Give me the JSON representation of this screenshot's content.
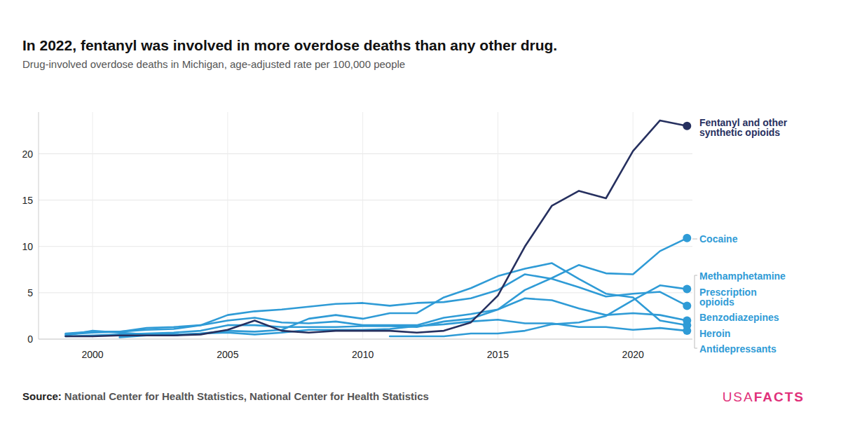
{
  "chart_data": {
    "type": "line",
    "title": "In 2022, fentanyl was involved in more overdose deaths than any other drug.",
    "subtitle": "Drug-involved overdose deaths in Michigan, age-adjusted rate per 100,000 people",
    "source_label": "Source:",
    "source": "National Center for Health Statistics, National Center for Health Statistics",
    "logo": [
      "USA",
      "FACTS"
    ],
    "x": [
      1999,
      2000,
      2001,
      2002,
      2003,
      2004,
      2005,
      2006,
      2007,
      2008,
      2009,
      2010,
      2011,
      2012,
      2013,
      2014,
      2015,
      2016,
      2017,
      2018,
      2019,
      2020,
      2021,
      2022
    ],
    "xlim": [
      1998,
      2022.2
    ],
    "xticks": [
      2000,
      2005,
      2010,
      2015,
      2020
    ],
    "ylim": [
      0,
      24.5
    ],
    "yticks": [
      0,
      5,
      10,
      15,
      20
    ],
    "grid": true,
    "series": [
      {
        "name": "Fentanyl and other synthetic opioids",
        "color": "#26305f",
        "values": [
          0.3,
          0.3,
          0.4,
          0.4,
          0.4,
          0.5,
          1.0,
          2.0,
          0.9,
          0.7,
          0.9,
          0.9,
          0.9,
          0.7,
          0.9,
          1.8,
          4.7,
          10.0,
          14.4,
          16.0,
          15.2,
          20.3,
          23.6,
          23.0
        ]
      },
      {
        "name": "Cocaine",
        "color": "#2f9bd6",
        "values": [
          0.6,
          0.8,
          0.8,
          1.2,
          1.3,
          1.5,
          2.0,
          2.3,
          1.8,
          1.7,
          1.9,
          1.5,
          1.5,
          1.5,
          2.3,
          2.7,
          3.2,
          5.3,
          6.6,
          8.0,
          7.1,
          7.0,
          9.5,
          10.9
        ]
      },
      {
        "name": "Methamphetamine",
        "color": "#2f9bd6",
        "values": [
          null,
          null,
          null,
          null,
          null,
          null,
          null,
          null,
          null,
          null,
          null,
          null,
          0.3,
          0.3,
          0.3,
          0.6,
          0.6,
          0.9,
          1.6,
          1.8,
          2.5,
          4.2,
          5.8,
          5.4
        ]
      },
      {
        "name": "Prescription opioids",
        "color": "#2f9bd6",
        "values": [
          0.5,
          0.7,
          0.8,
          1.0,
          1.1,
          1.5,
          2.6,
          3.0,
          3.2,
          3.5,
          3.8,
          3.9,
          3.6,
          3.9,
          4.0,
          4.4,
          5.3,
          7.0,
          6.5,
          5.6,
          4.6,
          4.9,
          5.1,
          3.6
        ]
      },
      {
        "name": "Benzodiazepines",
        "color": "#2f9bd6",
        "values": [
          0.3,
          0.4,
          0.5,
          0.6,
          0.7,
          0.9,
          1.5,
          1.5,
          1.3,
          1.3,
          1.3,
          1.4,
          1.4,
          1.3,
          1.9,
          2.2,
          3.2,
          4.4,
          4.2,
          3.3,
          2.6,
          2.8,
          2.6,
          2.0
        ]
      },
      {
        "name": "Heroin",
        "color": "#2f9bd6",
        "values": [
          0.4,
          0.9,
          0.7,
          0.5,
          0.5,
          0.6,
          0.9,
          0.8,
          1.0,
          2.2,
          2.6,
          2.2,
          2.8,
          2.8,
          4.5,
          5.5,
          6.8,
          7.6,
          8.2,
          6.5,
          4.9,
          4.5,
          2.0,
          1.5
        ]
      },
      {
        "name": "Antidepressants",
        "color": "#2f9bd6",
        "values": [
          null,
          null,
          0.2,
          0.4,
          0.4,
          0.6,
          0.7,
          0.5,
          0.7,
          1.0,
          1.0,
          1.0,
          1.1,
          1.4,
          1.6,
          1.9,
          2.1,
          1.7,
          1.7,
          1.3,
          1.3,
          1.0,
          1.2,
          0.9
        ]
      }
    ]
  }
}
